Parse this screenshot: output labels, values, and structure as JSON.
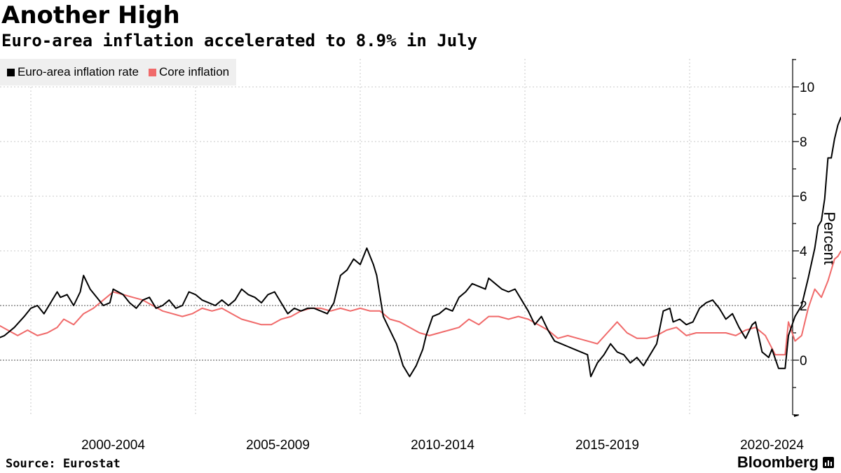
{
  "header": {
    "title": "Another High",
    "subtitle": "Euro-area inflation accelerated to 8.9% in July"
  },
  "footer": {
    "source": "Source: Eurostat",
    "brand": "Bloomberg"
  },
  "colors": {
    "headline": "#000000",
    "core": "#f06a6a",
    "grid": "#bdbdbd",
    "legend_bg": "#efefef"
  },
  "chart_data": {
    "type": "line",
    "title": "Another High",
    "subtitle": "Euro-area inflation accelerated to 8.9% in July",
    "xlabel": "",
    "ylabel": "Percent",
    "x_range": [
      1997,
      2022.6
    ],
    "ylim": [
      -2,
      11
    ],
    "y_ticks": [
      0,
      2,
      4,
      6,
      8,
      10
    ],
    "x_tick_positions": [
      1998,
      2003,
      2008,
      2013,
      2018,
      2023
    ],
    "x_category_labels": [
      {
        "label": "2000-2004",
        "center": 2000.5
      },
      {
        "label": "2005-2009",
        "center": 2005.5
      },
      {
        "label": "2010-2014",
        "center": 2010.5
      },
      {
        "label": "2015-2019",
        "center": 2015.5
      },
      {
        "label": "2020-2024",
        "center": 2020.5
      }
    ],
    "grid": true,
    "legend_position": "top-left",
    "series": [
      {
        "name": "Euro-area inflation rate",
        "color": "#000000",
        "points": [
          [
            1997.0,
            0.8
          ],
          [
            1997.2,
            0.9
          ],
          [
            1997.5,
            1.2
          ],
          [
            1997.8,
            1.6
          ],
          [
            1998.0,
            1.9
          ],
          [
            1998.2,
            2.0
          ],
          [
            1998.4,
            1.7
          ],
          [
            1998.6,
            2.1
          ],
          [
            1998.8,
            2.5
          ],
          [
            1998.9,
            2.3
          ],
          [
            1999.1,
            2.4
          ],
          [
            1999.3,
            2.0
          ],
          [
            1999.5,
            2.5
          ],
          [
            1999.6,
            3.1
          ],
          [
            1999.8,
            2.6
          ],
          [
            2000.0,
            2.3
          ],
          [
            2000.2,
            2.0
          ],
          [
            2000.4,
            2.1
          ],
          [
            2000.5,
            2.6
          ],
          [
            2000.8,
            2.4
          ],
          [
            2001.0,
            2.1
          ],
          [
            2001.2,
            1.9
          ],
          [
            2001.4,
            2.2
          ],
          [
            2001.6,
            2.3
          ],
          [
            2001.8,
            1.9
          ],
          [
            2002.0,
            2.0
          ],
          [
            2002.2,
            2.2
          ],
          [
            2002.4,
            1.9
          ],
          [
            2002.6,
            2.0
          ],
          [
            2002.8,
            2.5
          ],
          [
            2003.0,
            2.4
          ],
          [
            2003.2,
            2.2
          ],
          [
            2003.4,
            2.1
          ],
          [
            2003.6,
            2.0
          ],
          [
            2003.8,
            2.2
          ],
          [
            2004.0,
            2.0
          ],
          [
            2004.2,
            2.2
          ],
          [
            2004.4,
            2.6
          ],
          [
            2004.6,
            2.4
          ],
          [
            2004.8,
            2.3
          ],
          [
            2005.0,
            2.1
          ],
          [
            2005.2,
            2.4
          ],
          [
            2005.4,
            2.5
          ],
          [
            2005.6,
            2.1
          ],
          [
            2005.8,
            1.7
          ],
          [
            2006.0,
            1.9
          ],
          [
            2006.2,
            1.8
          ],
          [
            2006.4,
            1.9
          ],
          [
            2006.6,
            1.9
          ],
          [
            2006.8,
            1.8
          ],
          [
            2007.0,
            1.7
          ],
          [
            2007.2,
            2.1
          ],
          [
            2007.4,
            3.1
          ],
          [
            2007.6,
            3.3
          ],
          [
            2007.8,
            3.7
          ],
          [
            2008.0,
            3.5
          ],
          [
            2008.2,
            4.1
          ],
          [
            2008.4,
            3.5
          ],
          [
            2008.5,
            3.1
          ],
          [
            2008.7,
            1.6
          ],
          [
            2008.9,
            1.1
          ],
          [
            2009.1,
            0.6
          ],
          [
            2009.3,
            -0.2
          ],
          [
            2009.5,
            -0.6
          ],
          [
            2009.7,
            -0.2
          ],
          [
            2009.9,
            0.4
          ],
          [
            2010.0,
            0.9
          ],
          [
            2010.2,
            1.6
          ],
          [
            2010.4,
            1.7
          ],
          [
            2010.6,
            1.9
          ],
          [
            2010.8,
            1.8
          ],
          [
            2011.0,
            2.3
          ],
          [
            2011.2,
            2.5
          ],
          [
            2011.4,
            2.8
          ],
          [
            2011.6,
            2.7
          ],
          [
            2011.8,
            2.6
          ],
          [
            2011.9,
            3.0
          ],
          [
            2012.1,
            2.8
          ],
          [
            2012.3,
            2.6
          ],
          [
            2012.5,
            2.5
          ],
          [
            2012.7,
            2.6
          ],
          [
            2012.9,
            2.2
          ],
          [
            2013.1,
            1.8
          ],
          [
            2013.3,
            1.3
          ],
          [
            2013.5,
            1.6
          ],
          [
            2013.7,
            1.1
          ],
          [
            2013.9,
            0.7
          ],
          [
            2014.1,
            0.6
          ],
          [
            2014.3,
            0.5
          ],
          [
            2014.5,
            0.4
          ],
          [
            2014.7,
            0.3
          ],
          [
            2014.9,
            0.2
          ],
          [
            2015.0,
            -0.6
          ],
          [
            2015.2,
            -0.1
          ],
          [
            2015.4,
            0.2
          ],
          [
            2015.6,
            0.6
          ],
          [
            2015.8,
            0.3
          ],
          [
            2016.0,
            0.2
          ],
          [
            2016.2,
            -0.1
          ],
          [
            2016.4,
            0.1
          ],
          [
            2016.6,
            -0.2
          ],
          [
            2016.8,
            0.2
          ],
          [
            2017.0,
            0.6
          ],
          [
            2017.2,
            1.8
          ],
          [
            2017.4,
            1.9
          ],
          [
            2017.5,
            1.4
          ],
          [
            2017.7,
            1.5
          ],
          [
            2017.9,
            1.3
          ],
          [
            2018.1,
            1.4
          ],
          [
            2018.3,
            1.9
          ],
          [
            2018.5,
            2.1
          ],
          [
            2018.7,
            2.2
          ],
          [
            2018.9,
            1.9
          ],
          [
            2019.1,
            1.5
          ],
          [
            2019.3,
            1.7
          ],
          [
            2019.5,
            1.2
          ],
          [
            2019.7,
            0.8
          ],
          [
            2019.9,
            1.3
          ],
          [
            2020.0,
            1.4
          ],
          [
            2020.2,
            0.3
          ],
          [
            2020.4,
            0.1
          ],
          [
            2020.5,
            0.4
          ],
          [
            2020.7,
            -0.3
          ],
          [
            2020.9,
            -0.3
          ],
          [
            2021.0,
            0.9
          ],
          [
            2021.2,
            1.6
          ],
          [
            2021.4,
            2.0
          ],
          [
            2021.6,
            3.0
          ],
          [
            2021.8,
            4.1
          ],
          [
            2021.9,
            4.9
          ],
          [
            2022.0,
            5.1
          ],
          [
            2022.1,
            5.9
          ],
          [
            2022.2,
            7.4
          ],
          [
            2022.3,
            7.4
          ],
          [
            2022.4,
            8.1
          ],
          [
            2022.5,
            8.6
          ],
          [
            2022.6,
            8.9
          ]
        ]
      },
      {
        "name": "Core inflation",
        "color": "#f06a6a",
        "points": [
          [
            1997.0,
            1.3
          ],
          [
            1997.3,
            1.1
          ],
          [
            1997.6,
            0.9
          ],
          [
            1997.9,
            1.1
          ],
          [
            1998.2,
            0.9
          ],
          [
            1998.5,
            1.0
          ],
          [
            1998.8,
            1.2
          ],
          [
            1999.0,
            1.5
          ],
          [
            1999.3,
            1.3
          ],
          [
            1999.6,
            1.7
          ],
          [
            1999.9,
            1.9
          ],
          [
            2000.2,
            2.2
          ],
          [
            2000.5,
            2.5
          ],
          [
            2000.8,
            2.4
          ],
          [
            2001.1,
            2.3
          ],
          [
            2001.4,
            2.2
          ],
          [
            2001.7,
            2.0
          ],
          [
            2002.0,
            1.8
          ],
          [
            2002.3,
            1.7
          ],
          [
            2002.6,
            1.6
          ],
          [
            2002.9,
            1.7
          ],
          [
            2003.2,
            1.9
          ],
          [
            2003.5,
            1.8
          ],
          [
            2003.8,
            1.9
          ],
          [
            2004.1,
            1.7
          ],
          [
            2004.4,
            1.5
          ],
          [
            2004.7,
            1.4
          ],
          [
            2005.0,
            1.3
          ],
          [
            2005.3,
            1.3
          ],
          [
            2005.6,
            1.5
          ],
          [
            2005.9,
            1.6
          ],
          [
            2006.2,
            1.8
          ],
          [
            2006.5,
            1.9
          ],
          [
            2006.8,
            1.9
          ],
          [
            2007.1,
            1.8
          ],
          [
            2007.4,
            1.9
          ],
          [
            2007.7,
            1.8
          ],
          [
            2008.0,
            1.9
          ],
          [
            2008.3,
            1.8
          ],
          [
            2008.6,
            1.8
          ],
          [
            2008.9,
            1.5
          ],
          [
            2009.2,
            1.4
          ],
          [
            2009.5,
            1.2
          ],
          [
            2009.8,
            1.0
          ],
          [
            2010.1,
            0.9
          ],
          [
            2010.4,
            1.0
          ],
          [
            2010.7,
            1.1
          ],
          [
            2011.0,
            1.2
          ],
          [
            2011.3,
            1.5
          ],
          [
            2011.6,
            1.3
          ],
          [
            2011.9,
            1.6
          ],
          [
            2012.2,
            1.6
          ],
          [
            2012.5,
            1.5
          ],
          [
            2012.8,
            1.6
          ],
          [
            2013.1,
            1.5
          ],
          [
            2013.4,
            1.3
          ],
          [
            2013.7,
            1.1
          ],
          [
            2014.0,
            0.8
          ],
          [
            2014.3,
            0.9
          ],
          [
            2014.6,
            0.8
          ],
          [
            2014.9,
            0.7
          ],
          [
            2015.2,
            0.6
          ],
          [
            2015.5,
            1.0
          ],
          [
            2015.8,
            1.4
          ],
          [
            2016.1,
            1.0
          ],
          [
            2016.4,
            0.8
          ],
          [
            2016.7,
            0.8
          ],
          [
            2017.0,
            0.9
          ],
          [
            2017.3,
            1.1
          ],
          [
            2017.6,
            1.2
          ],
          [
            2017.9,
            0.9
          ],
          [
            2018.2,
            1.0
          ],
          [
            2018.5,
            1.0
          ],
          [
            2018.8,
            1.0
          ],
          [
            2019.1,
            1.0
          ],
          [
            2019.4,
            0.9
          ],
          [
            2019.7,
            1.1
          ],
          [
            2020.0,
            1.2
          ],
          [
            2020.3,
            0.9
          ],
          [
            2020.6,
            0.2
          ],
          [
            2020.9,
            0.2
          ],
          [
            2021.0,
            1.4
          ],
          [
            2021.2,
            0.7
          ],
          [
            2021.4,
            0.9
          ],
          [
            2021.6,
            1.9
          ],
          [
            2021.8,
            2.6
          ],
          [
            2022.0,
            2.3
          ],
          [
            2022.2,
            2.9
          ],
          [
            2022.4,
            3.7
          ],
          [
            2022.5,
            3.8
          ],
          [
            2022.6,
            4.0
          ]
        ]
      }
    ]
  }
}
